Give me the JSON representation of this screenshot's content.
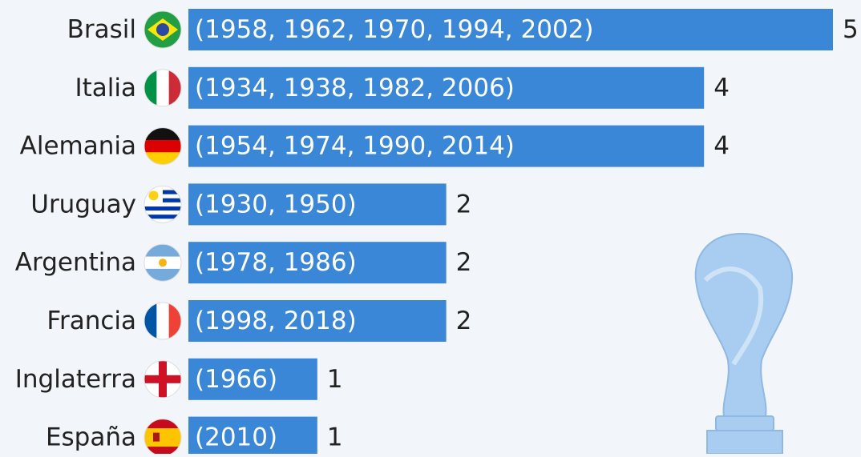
{
  "chart_data": {
    "type": "bar",
    "orientation": "horizontal",
    "categories": [
      "Brasil",
      "Italia",
      "Alemania",
      "Uruguay",
      "Argentina",
      "Francia",
      "Inglaterra",
      "España"
    ],
    "values": [
      5,
      4,
      4,
      2,
      2,
      2,
      1,
      1
    ],
    "annotations": [
      "(1958, 1962, 1970, 1994, 2002)",
      "(1934, 1938, 1982, 2006)",
      "(1954, 1974, 1990, 2014)",
      "(1930, 1950)",
      "(1978, 1986)",
      "(1998, 2018)",
      "(1966)",
      "(2010)"
    ],
    "color": "#3a87d8"
  }
}
